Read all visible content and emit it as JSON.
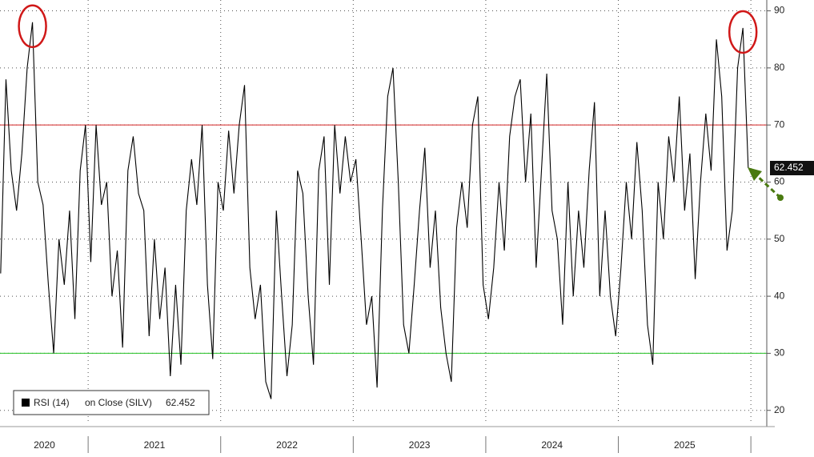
{
  "chart_data": {
    "type": "line",
    "x": [
      2020.34,
      2020.38,
      2020.42,
      2020.46,
      2020.5,
      2020.54,
      2020.58,
      2020.62,
      2020.66,
      2020.7,
      2020.74,
      2020.78,
      2020.82,
      2020.86,
      2020.9,
      2020.94,
      2020.98,
      2021.02,
      2021.06,
      2021.1,
      2021.14,
      2021.18,
      2021.22,
      2021.26,
      2021.3,
      2021.34,
      2021.38,
      2021.42,
      2021.46,
      2021.5,
      2021.54,
      2021.58,
      2021.62,
      2021.66,
      2021.7,
      2021.74,
      2021.78,
      2021.82,
      2021.86,
      2021.9,
      2021.94,
      2021.98,
      2022.02,
      2022.06,
      2022.1,
      2022.14,
      2022.18,
      2022.22,
      2022.26,
      2022.3,
      2022.34,
      2022.38,
      2022.42,
      2022.46,
      2022.5,
      2022.54,
      2022.58,
      2022.62,
      2022.66,
      2022.7,
      2022.74,
      2022.78,
      2022.82,
      2022.86,
      2022.9,
      2022.94,
      2022.98,
      2023.02,
      2023.06,
      2023.1,
      2023.14,
      2023.18,
      2023.22,
      2023.26,
      2023.3,
      2023.34,
      2023.38,
      2023.42,
      2023.46,
      2023.5,
      2023.54,
      2023.58,
      2023.62,
      2023.66,
      2023.7,
      2023.74,
      2023.78,
      2023.82,
      2023.86,
      2023.9,
      2023.94,
      2023.98,
      2024.02,
      2024.06,
      2024.1,
      2024.14,
      2024.18,
      2024.22,
      2024.26,
      2024.3,
      2024.34,
      2024.38,
      2024.42,
      2024.46,
      2024.5,
      2024.54,
      2024.58,
      2024.62,
      2024.66,
      2024.7,
      2024.74,
      2024.78,
      2024.82,
      2024.86,
      2024.9,
      2024.94,
      2024.98,
      2025.02,
      2025.06,
      2025.1,
      2025.14,
      2025.18,
      2025.22,
      2025.26,
      2025.3,
      2025.34,
      2025.38,
      2025.42,
      2025.46,
      2025.5,
      2025.54,
      2025.58,
      2025.62,
      2025.66,
      2025.7,
      2025.74,
      2025.78,
      2025.82,
      2025.86,
      2025.9,
      2025.94,
      2025.98
    ],
    "series": [
      {
        "name": "RSI (14)",
        "color": "#000000",
        "values": [
          44,
          78,
          62,
          55,
          65,
          80,
          88,
          60,
          56,
          42,
          30,
          50,
          42,
          55,
          36,
          62,
          70,
          46,
          70,
          56,
          60,
          40,
          48,
          31,
          62,
          68,
          58,
          55,
          33,
          50,
          36,
          45,
          26,
          42,
          28,
          55,
          64,
          56,
          70,
          42,
          29,
          60,
          55,
          69,
          58,
          70,
          77,
          45,
          36,
          42,
          25,
          22,
          55,
          40,
          26,
          35,
          62,
          58,
          40,
          28,
          62,
          68,
          42,
          70,
          58,
          68,
          60,
          64,
          50,
          35,
          40,
          24,
          55,
          75,
          80,
          60,
          35,
          30,
          42,
          55,
          66,
          45,
          55,
          38,
          30,
          25,
          52,
          60,
          52,
          70,
          75,
          42,
          36,
          45,
          60,
          48,
          68,
          75,
          78,
          60,
          72,
          45,
          62,
          79,
          55,
          50,
          35,
          60,
          40,
          55,
          45,
          62,
          74,
          40,
          55,
          40,
          33,
          45,
          60,
          50,
          67,
          55,
          35,
          28,
          60,
          50,
          68,
          60,
          75,
          55,
          65,
          43,
          60,
          72,
          62,
          85,
          75,
          48,
          55,
          80,
          87,
          62.452
        ]
      }
    ],
    "legend_label": "on Close (SILV)",
    "xlim": [
      2020.335,
      2026.12
    ],
    "xticks": [
      {
        "value": 2020.67,
        "label": "2020"
      },
      {
        "value": 2021.5,
        "label": "2021"
      },
      {
        "value": 2022.5,
        "label": "2022"
      },
      {
        "value": 2023.5,
        "label": "2023"
      },
      {
        "value": 2024.5,
        "label": "2024"
      },
      {
        "value": 2025.5,
        "label": "2025"
      }
    ],
    "xsep": [
      2021,
      2022,
      2023,
      2024,
      2025,
      2026
    ],
    "ylim": [
      18,
      91.9
    ],
    "yticks": [
      20,
      30,
      40,
      50,
      60,
      70,
      80,
      90
    ],
    "hlines": [
      {
        "value": 70,
        "color": "#d42020"
      },
      {
        "value": 30,
        "color": "#22c022"
      }
    ],
    "grid": true
  }
}
